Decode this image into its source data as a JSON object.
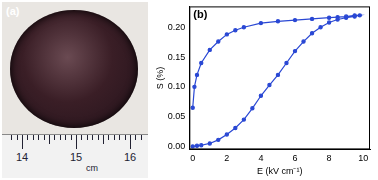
{
  "panel_a": {
    "label": "(a)",
    "ruler": {
      "ticks": [
        14,
        15,
        16
      ],
      "unit": "cm"
    }
  },
  "chart_data": {
    "type": "scatter",
    "annotation": "(b)",
    "x_label": "E (kV cm⁻¹)",
    "y_label": "S (%)",
    "x": [
      0,
      0.25,
      0.5,
      1,
      1.5,
      2,
      2.5,
      3,
      3.5,
      4,
      4.5,
      5,
      5.5,
      6,
      6.5,
      7,
      7.5,
      8,
      8.5,
      9,
      9.5,
      9.8,
      9.5,
      9,
      8.5,
      8,
      7,
      6,
      5,
      4,
      3,
      2.5,
      2,
      1.5,
      1,
      0.5,
      0.25,
      0.1,
      0
    ],
    "values": [
      0,
      0.001,
      0.002,
      0.005,
      0.011,
      0.02,
      0.031,
      0.045,
      0.064,
      0.085,
      0.103,
      0.12,
      0.14,
      0.16,
      0.176,
      0.19,
      0.2,
      0.208,
      0.213,
      0.216,
      0.218,
      0.22,
      0.22,
      0.218,
      0.217,
      0.216,
      0.214,
      0.212,
      0.21,
      0.207,
      0.2,
      0.195,
      0.188,
      0.176,
      0.162,
      0.14,
      0.12,
      0.1,
      0.065
    ],
    "color": "#2a48d4",
    "marker": "circle",
    "line_style": "solid",
    "xlim": [
      -0.2,
      10.4
    ],
    "xticks": [
      0,
      2,
      4,
      6,
      8,
      10
    ],
    "ylim": [
      -0.005,
      0.235
    ],
    "yticks": [
      {
        "value": 0,
        "label": "0.00"
      },
      {
        "value": 0.05,
        "label": "0.05"
      },
      {
        "value": 0.1,
        "label": "0.10"
      },
      {
        "value": 0.15,
        "label": "0.15"
      },
      {
        "value": 0.2,
        "label": "0.20"
      }
    ],
    "grid": false
  }
}
